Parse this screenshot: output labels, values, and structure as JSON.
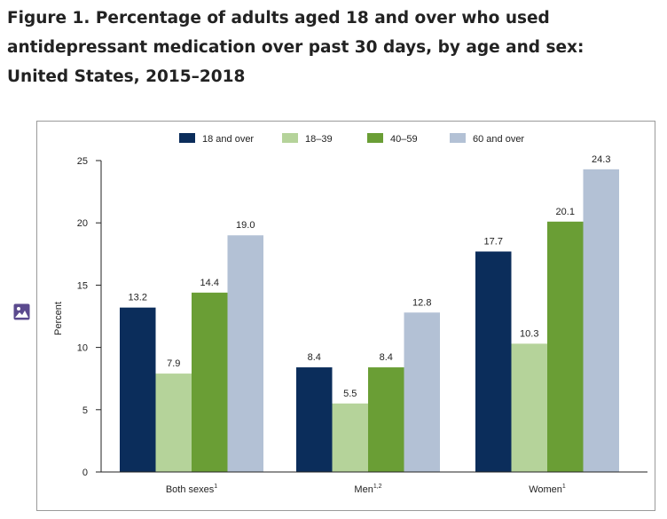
{
  "figure": {
    "title_lines": [
      "Figure 1. Percentage of adults aged 18 and over who used",
      "antidepressant medication over past 30 days, by age and sex:",
      "United States, 2015–2018"
    ],
    "icon": "image-icon"
  },
  "chart_data": {
    "type": "bar",
    "title": "",
    "xlabel": "",
    "ylabel": "Percent",
    "ylim": [
      0,
      25
    ],
    "yticks": [
      0,
      5,
      10,
      15,
      20,
      25
    ],
    "categories": [
      {
        "label": "Both sexes",
        "sup": "1"
      },
      {
        "label": "Men",
        "sup": "1,2"
      },
      {
        "label": "Women",
        "sup": "1"
      }
    ],
    "series": [
      {
        "name": "18 and over",
        "color": "#0b2d5b",
        "values": [
          13.2,
          8.4,
          17.7
        ]
      },
      {
        "name": "18–39",
        "color": "#b5d39a",
        "values": [
          7.9,
          5.5,
          10.3
        ]
      },
      {
        "name": "40–59",
        "color": "#6a9e35",
        "values": [
          14.4,
          8.4,
          20.1
        ]
      },
      {
        "name": "60 and over",
        "color": "#b3c1d5",
        "values": [
          19.0,
          12.8,
          24.3
        ]
      }
    ],
    "legend_position": "top-center",
    "grid": false
  }
}
